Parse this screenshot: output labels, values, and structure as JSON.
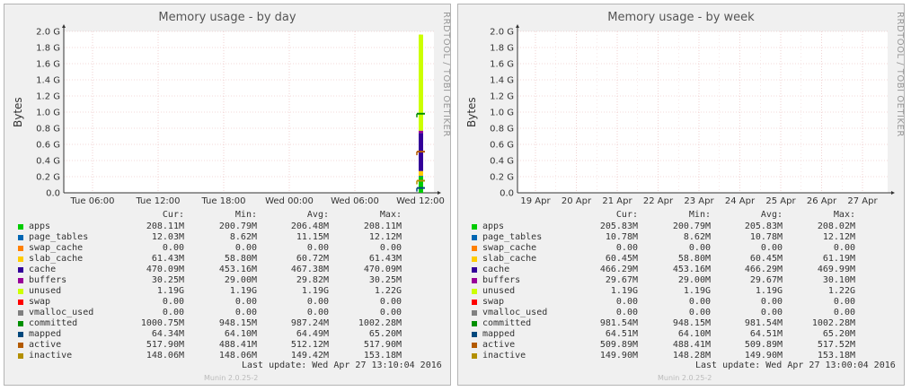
{
  "charts": [
    {
      "title": "Memory usage - by day",
      "ylabel": "Bytes",
      "vendor": "RRDTOOL / TOBI OETIKER",
      "yticks": [
        "0.0",
        "0.2 G",
        "0.4 G",
        "0.6 G",
        "0.8 G",
        "1.0 G",
        "1.2 G",
        "1.4 G",
        "1.6 G",
        "1.8 G",
        "2.0 G"
      ],
      "xticks": [
        "Tue 06:00",
        "Tue 12:00",
        "Tue 18:00",
        "Wed 00:00",
        "Wed 06:00",
        "Wed 12:00"
      ],
      "legend_headers": [
        "Cur:",
        "Min:",
        "Avg:",
        "Max:"
      ],
      "legend": [
        {
          "name": "apps",
          "color": "#00cc00",
          "cur": "208.11M",
          "min": "200.79M",
          "avg": "206.48M",
          "max": "208.11M"
        },
        {
          "name": "page_tables",
          "color": "#0066b3",
          "cur": "12.03M",
          "min": "8.62M",
          "avg": "11.15M",
          "max": "12.12M"
        },
        {
          "name": "swap_cache",
          "color": "#ff8000",
          "cur": "0.00",
          "min": "0.00",
          "avg": "0.00",
          "max": "0.00"
        },
        {
          "name": "slab_cache",
          "color": "#ffcc00",
          "cur": "61.43M",
          "min": "58.80M",
          "avg": "60.72M",
          "max": "61.43M"
        },
        {
          "name": "cache",
          "color": "#330099",
          "cur": "470.09M",
          "min": "453.16M",
          "avg": "467.38M",
          "max": "470.09M"
        },
        {
          "name": "buffers",
          "color": "#990099",
          "cur": "30.25M",
          "min": "29.00M",
          "avg": "29.82M",
          "max": "30.25M"
        },
        {
          "name": "unused",
          "color": "#ccff00",
          "cur": "1.19G",
          "min": "1.19G",
          "avg": "1.19G",
          "max": "1.22G"
        },
        {
          "name": "swap",
          "color": "#ff0000",
          "cur": "0.00",
          "min": "0.00",
          "avg": "0.00",
          "max": "0.00"
        },
        {
          "name": "vmalloc_used",
          "color": "#808080",
          "cur": "0.00",
          "min": "0.00",
          "avg": "0.00",
          "max": "0.00"
        },
        {
          "name": "committed",
          "color": "#008f00",
          "cur": "1000.75M",
          "min": "948.15M",
          "avg": "987.24M",
          "max": "1002.28M"
        },
        {
          "name": "mapped",
          "color": "#00487d",
          "cur": "64.34M",
          "min": "64.10M",
          "avg": "64.49M",
          "max": "65.20M"
        },
        {
          "name": "active",
          "color": "#b35a00",
          "cur": "517.90M",
          "min": "488.41M",
          "avg": "512.12M",
          "max": "517.90M"
        },
        {
          "name": "inactive",
          "color": "#b38f00",
          "cur": "148.06M",
          "min": "148.06M",
          "avg": "149.42M",
          "max": "153.18M"
        }
      ],
      "last_update": "Last update: Wed Apr 27 13:10:04 2016",
      "munin": "Munin 2.0.25-2"
    },
    {
      "title": "Memory usage - by week",
      "ylabel": "Bytes",
      "vendor": "RRDTOOL / TOBI OETIKER",
      "yticks": [
        "0.0",
        "0.2 G",
        "0.4 G",
        "0.6 G",
        "0.8 G",
        "1.0 G",
        "1.2 G",
        "1.4 G",
        "1.6 G",
        "1.8 G",
        "2.0 G"
      ],
      "xticks": [
        "19 Apr",
        "20 Apr",
        "21 Apr",
        "22 Apr",
        "23 Apr",
        "24 Apr",
        "25 Apr",
        "26 Apr",
        "27 Apr"
      ],
      "legend_headers": [
        "Cur:",
        "Min:",
        "Avg:",
        "Max:"
      ],
      "legend": [
        {
          "name": "apps",
          "color": "#00cc00",
          "cur": "205.83M",
          "min": "200.79M",
          "avg": "205.83M",
          "max": "208.02M"
        },
        {
          "name": "page_tables",
          "color": "#0066b3",
          "cur": "10.78M",
          "min": "8.62M",
          "avg": "10.78M",
          "max": "12.12M"
        },
        {
          "name": "swap_cache",
          "color": "#ff8000",
          "cur": "0.00",
          "min": "0.00",
          "avg": "0.00",
          "max": "0.00"
        },
        {
          "name": "slab_cache",
          "color": "#ffcc00",
          "cur": "60.45M",
          "min": "58.80M",
          "avg": "60.45M",
          "max": "61.19M"
        },
        {
          "name": "cache",
          "color": "#330099",
          "cur": "466.29M",
          "min": "453.16M",
          "avg": "466.29M",
          "max": "469.99M"
        },
        {
          "name": "buffers",
          "color": "#990099",
          "cur": "29.67M",
          "min": "29.00M",
          "avg": "29.67M",
          "max": "30.10M"
        },
        {
          "name": "unused",
          "color": "#ccff00",
          "cur": "1.19G",
          "min": "1.19G",
          "avg": "1.19G",
          "max": "1.22G"
        },
        {
          "name": "swap",
          "color": "#ff0000",
          "cur": "0.00",
          "min": "0.00",
          "avg": "0.00",
          "max": "0.00"
        },
        {
          "name": "vmalloc_used",
          "color": "#808080",
          "cur": "0.00",
          "min": "0.00",
          "avg": "0.00",
          "max": "0.00"
        },
        {
          "name": "committed",
          "color": "#008f00",
          "cur": "981.54M",
          "min": "948.15M",
          "avg": "981.54M",
          "max": "1002.28M"
        },
        {
          "name": "mapped",
          "color": "#00487d",
          "cur": "64.51M",
          "min": "64.10M",
          "avg": "64.51M",
          "max": "65.20M"
        },
        {
          "name": "active",
          "color": "#b35a00",
          "cur": "509.89M",
          "min": "488.41M",
          "avg": "509.89M",
          "max": "517.52M"
        },
        {
          "name": "inactive",
          "color": "#b38f00",
          "cur": "149.90M",
          "min": "148.28M",
          "avg": "149.90M",
          "max": "153.18M"
        }
      ],
      "last_update": "Last update: Wed Apr 27 13:00:04 2016",
      "munin": "Munin 2.0.25-2"
    }
  ],
  "chart_data": [
    {
      "type": "area",
      "title": "Memory usage - by day",
      "ylabel": "Bytes",
      "ylim": [
        0,
        2.0
      ],
      "y_unit": "G",
      "x_ticks": [
        "Tue 06:00",
        "Tue 12:00",
        "Tue 18:00",
        "Wed 00:00",
        "Wed 06:00",
        "Wed 12:00"
      ],
      "stack": [
        {
          "name": "apps",
          "value": 0.2
        },
        {
          "name": "page_tables",
          "value": 0.01
        },
        {
          "name": "swap_cache",
          "value": 0.0
        },
        {
          "name": "slab_cache",
          "value": 0.06
        },
        {
          "name": "cache",
          "value": 0.47
        },
        {
          "name": "buffers",
          "value": 0.03
        },
        {
          "name": "unused",
          "value": 1.19
        },
        {
          "name": "swap",
          "value": 0.0
        },
        {
          "name": "vmalloc_used",
          "value": 0.0
        }
      ],
      "lines": [
        {
          "name": "committed",
          "value": 0.98
        },
        {
          "name": "mapped",
          "value": 0.06
        },
        {
          "name": "active",
          "value": 0.51
        },
        {
          "name": "inactive",
          "value": 0.15
        }
      ],
      "grid": true
    },
    {
      "type": "area",
      "title": "Memory usage - by week",
      "ylabel": "Bytes",
      "ylim": [
        0,
        2.0
      ],
      "y_unit": "G",
      "x_ticks": [
        "19 Apr",
        "20 Apr",
        "21 Apr",
        "22 Apr",
        "23 Apr",
        "24 Apr",
        "25 Apr",
        "26 Apr",
        "27 Apr"
      ],
      "stack": [],
      "lines": [],
      "grid": true
    }
  ]
}
